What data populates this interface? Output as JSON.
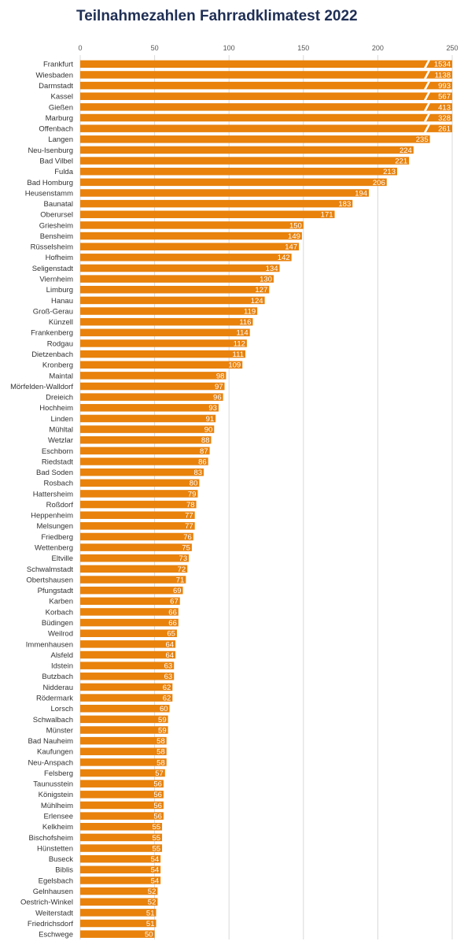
{
  "chart_data": {
    "type": "bar",
    "orientation": "horizontal",
    "title": "Teilnahmezahlen Fahrradklimatest 2022",
    "xlabel": "",
    "ylabel": "",
    "xlim": [
      0,
      250
    ],
    "x_ticks": [
      0,
      50,
      100,
      150,
      200,
      250
    ],
    "grid": true,
    "axis_break": true,
    "bar_color": "#e8820c",
    "categories": [
      "Frankfurt",
      "Wiesbaden",
      "Darmstadt",
      "Kassel",
      "Gießen",
      "Marburg",
      "Offenbach",
      "Langen",
      "Neu-Isenburg",
      "Bad Vilbel",
      "Fulda",
      "Bad Homburg",
      "Heusenstamm",
      "Baunatal",
      "Oberursel",
      "Griesheim",
      "Bensheim",
      "Rüsselsheim",
      "Hofheim",
      "Seligenstadt",
      "Viernheim",
      "Limburg",
      "Hanau",
      "Groß-Gerau",
      "Künzell",
      "Frankenberg",
      "Rodgau",
      "Dietzenbach",
      "Kronberg",
      "Maintal",
      "Mörfelden-Walldorf",
      "Dreieich",
      "Hochheim",
      "Linden",
      "Mühltal",
      "Wetzlar",
      "Eschborn",
      "Riedstadt",
      "Bad Soden",
      "Rosbach",
      "Hattersheim",
      "Roßdorf",
      "Heppenheim",
      "Melsungen",
      "Friedberg",
      "Wettenberg",
      "Eltville",
      "Schwalmstadt",
      "Obertshausen",
      "Pfungstadt",
      "Karben",
      "Korbach",
      "Büdingen",
      "Weilrod",
      "Immenhausen",
      "Alsfeld",
      "Idstein",
      "Butzbach",
      "Nidderau",
      "Rödermark",
      "Lorsch",
      "Schwalbach",
      "Münster",
      "Bad Nauheim",
      "Kaufungen",
      "Neu-Anspach",
      "Felsberg",
      "Taunusstein",
      "Königstein",
      "Mühlheim",
      "Erlensee",
      "Kelkheim",
      "Bischofsheim",
      "Hünstetten",
      "Buseck",
      "Biblis",
      "Egelsbach",
      "Gelnhausen",
      "Oestrich-Winkel",
      "Weiterstadt",
      "Friedrichsdorf",
      "Eschwege"
    ],
    "values": [
      1534,
      1138,
      993,
      567,
      413,
      328,
      261,
      235,
      224,
      221,
      213,
      206,
      194,
      183,
      171,
      150,
      149,
      147,
      142,
      134,
      130,
      127,
      124,
      119,
      116,
      114,
      112,
      111,
      109,
      98,
      97,
      96,
      93,
      91,
      90,
      88,
      87,
      86,
      83,
      80,
      79,
      78,
      77,
      77,
      76,
      75,
      73,
      72,
      71,
      69,
      67,
      66,
      66,
      65,
      64,
      64,
      63,
      63,
      62,
      62,
      60,
      59,
      59,
      58,
      58,
      58,
      57,
      56,
      56,
      56,
      56,
      55,
      55,
      55,
      54,
      54,
      54,
      52,
      52,
      51,
      51,
      50
    ]
  }
}
